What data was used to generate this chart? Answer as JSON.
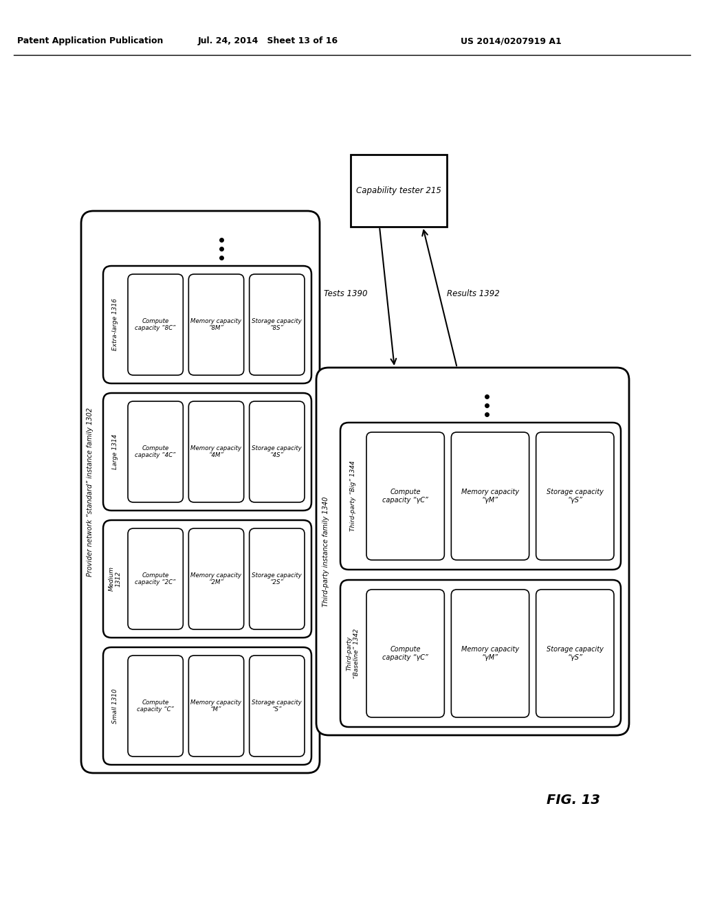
{
  "header_left": "Patent Application Publication",
  "header_mid": "Jul. 24, 2014   Sheet 13 of 16",
  "header_right": "US 2014/0207919 A1",
  "fig_label": "FIG. 13",
  "provider_label": "Provider network “standard” instance family 1302",
  "instances_left": [
    {
      "name": "Small 1310",
      "compute": "Compute\ncapacity “C”",
      "memory": "Memory capacity\n“M”",
      "storage": "Storage capacity\n“S”"
    },
    {
      "name": "Medium\n1312",
      "compute": "Compute\ncapacity “2C”",
      "memory": "Memory capacity\n“2M”",
      "storage": "Storage capacity\n“2S”"
    },
    {
      "name": "Large 1314",
      "compute": "Compute\ncapacity “4C”",
      "memory": "Memory capacity\n“4M”",
      "storage": "Storage capacity\n“4S”"
    },
    {
      "name": "Extra-large 1316",
      "compute": "Compute\ncapacity “8C”",
      "memory": "Memory capacity\n“8M”",
      "storage": "Storage capacity\n“8S”"
    }
  ],
  "capability_tester_label": "Capability tester 215",
  "tests_label": "Tests 1390",
  "results_label": "Results 1392",
  "third_party_family_label": "Third-party instance family 1340",
  "instances_right": [
    {
      "name": "Third-party\n“Baseline” 1342",
      "compute": "Compute\ncapacity “γC”",
      "memory": "Memory capacity\n“γM”",
      "storage": "Storage capacity\n“γS”"
    },
    {
      "name": "Third-party “Big” 1344",
      "compute": "Compute\ncapacity “γC”",
      "memory": "Memory capacity\n“γM”",
      "storage": "Storage capacity\n“γS”"
    }
  ]
}
